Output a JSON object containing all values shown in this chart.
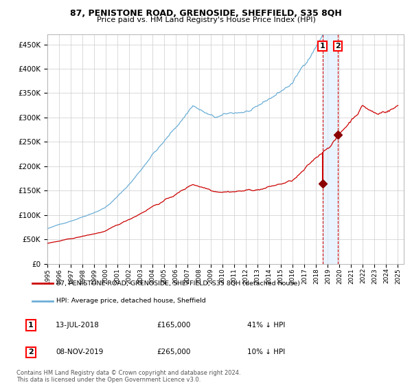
{
  "title": "87, PENISTONE ROAD, GRENOSIDE, SHEFFIELD, S35 8QH",
  "subtitle": "Price paid vs. HM Land Registry's House Price Index (HPI)",
  "legend_line1": "87, PENISTONE ROAD, GRENOSIDE, SHEFFIELD, S35 8QH (detached house)",
  "legend_line2": "HPI: Average price, detached house, Sheffield",
  "annotation1_label": "1",
  "annotation1_date": "13-JUL-2018",
  "annotation1_price": "£165,000",
  "annotation1_pct": "41% ↓ HPI",
  "annotation2_label": "2",
  "annotation2_date": "08-NOV-2019",
  "annotation2_price": "£265,000",
  "annotation2_pct": "10% ↓ HPI",
  "footer": "Contains HM Land Registry data © Crown copyright and database right 2024.\nThis data is licensed under the Open Government Licence v3.0.",
  "hpi_color": "#6baed6",
  "price_color": "#cc0000",
  "marker_color": "#8b0000",
  "vline_color": "#cc0000",
  "shading_color": "#ddeeff",
  "grid_color": "#cccccc",
  "ylim": [
    0,
    470000
  ],
  "yticks": [
    0,
    50000,
    100000,
    150000,
    200000,
    250000,
    300000,
    350000,
    400000,
    450000
  ],
  "sale1_year": 2018.54,
  "sale1_value": 165000,
  "sale2_year": 2019.85,
  "sale2_value": 265000,
  "start_year": 1995,
  "end_year": 2025
}
